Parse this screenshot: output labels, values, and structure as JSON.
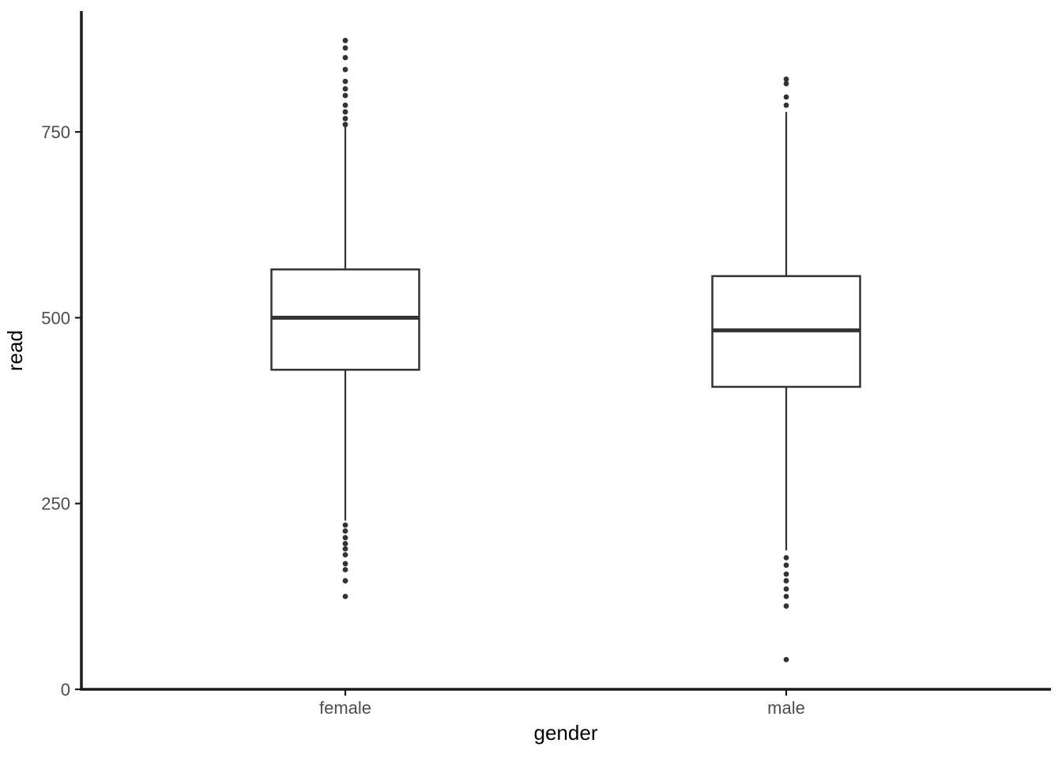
{
  "chart_data": {
    "type": "boxplot",
    "title": "",
    "xlabel": "gender",
    "ylabel": "read",
    "categories": [
      "female",
      "male"
    ],
    "y_ticks": [
      "0",
      "250",
      "500",
      "750"
    ],
    "y_tick_values": [
      0,
      250,
      500,
      750
    ],
    "ylim": [
      0,
      911
    ],
    "grid": "off",
    "legend": "none",
    "series": [
      {
        "category": "female",
        "q1": 430,
        "median": 500,
        "q3": 565,
        "whisker_low": 227,
        "whisker_high": 757,
        "outliers_high": [
          873,
          863,
          850,
          834,
          818,
          808,
          799,
          786,
          777,
          768,
          760
        ],
        "outliers_low": [
          221,
          213,
          204,
          196,
          189,
          181,
          169,
          161,
          146,
          125
        ]
      },
      {
        "category": "male",
        "q1": 407,
        "median": 483,
        "q3": 556,
        "whisker_low": 187,
        "whisker_high": 777,
        "outliers_high": [
          821,
          815,
          797,
          786
        ],
        "outliers_low": [
          177,
          167,
          155,
          146,
          135,
          125,
          112,
          40
        ]
      }
    ],
    "style": {
      "box_stroke": "#333333",
      "box_fill": "#ffffff",
      "axis_line_color": "#1a1a1a",
      "tick_label_color": "#4d4d4d",
      "axis_title_color": "#000000",
      "background": "#ffffff"
    }
  }
}
